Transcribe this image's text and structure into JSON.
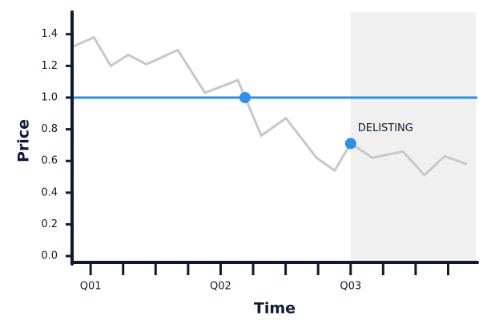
{
  "chart_data": {
    "type": "line",
    "xlabel": "Time",
    "ylabel": "Price",
    "xlim": [
      -0.57,
      11.9
    ],
    "ylim": [
      -0.04,
      1.54
    ],
    "xticks": [
      {
        "value": 0,
        "label": "Q01"
      },
      {
        "value": 1,
        "label": null
      },
      {
        "value": 2,
        "label": null
      },
      {
        "value": 3,
        "label": null
      },
      {
        "value": 4,
        "label": "Q02"
      },
      {
        "value": 5,
        "label": null
      },
      {
        "value": 6,
        "label": null
      },
      {
        "value": 7,
        "label": null
      },
      {
        "value": 8,
        "label": "Q03"
      },
      {
        "value": 9,
        "label": null
      },
      {
        "value": 10,
        "label": null
      },
      {
        "value": 11,
        "label": null
      }
    ],
    "yticks": [
      {
        "value": 0,
        "label": "0.0"
      },
      0.2,
      0.4,
      0.6,
      0.8,
      {
        "value": 1,
        "label": "1.0"
      },
      1.2,
      1.4
    ],
    "shaded_region": [
      8,
      11.85
    ],
    "shaded_color": "#f0f0f0",
    "reference_line": 1.0,
    "reference_color": "#2f8fe8",
    "series": [
      {
        "color": "#c8c8c8",
        "x": [
          -0.57,
          0.1,
          0.62,
          1.16,
          1.72,
          2.68,
          3.52,
          4.53,
          5.25,
          6.01,
          6.95,
          7.51,
          8.0,
          8.67,
          9.61,
          10.27,
          10.89,
          11.58
        ],
        "values": [
          1.32,
          1.38,
          1.2,
          1.27,
          1.21,
          1.3,
          1.03,
          1.11,
          0.76,
          0.87,
          0.62,
          0.54,
          0.71,
          0.62,
          0.66,
          0.51,
          0.63,
          0.58
        ]
      }
    ],
    "markers": [
      {
        "x": 4.75,
        "y": 1.0
      },
      {
        "x": 8.0,
        "y": 0.71,
        "label": "DELISTING"
      }
    ],
    "marker_color": "#2f8fe8",
    "axis_color": "#0d1a33"
  }
}
